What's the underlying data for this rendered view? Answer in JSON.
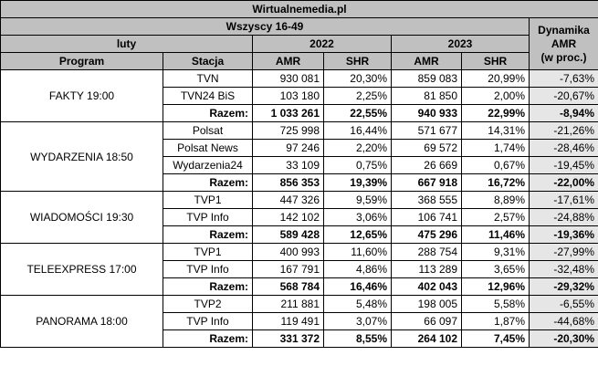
{
  "header": {
    "site": "Wirtualnemedia.pl",
    "group": "Wszyscy 16-49",
    "month": "luty",
    "year_a": "2022",
    "year_b": "2023",
    "dyn_line1": "Dynamika",
    "dyn_line2": "AMR",
    "dyn_line3": "(w proc.)",
    "col_program": "Program",
    "col_station": "Stacja",
    "col_amr": "AMR",
    "col_shr": "SHR"
  },
  "total_label": "Razem:",
  "programs": [
    {
      "name": "FAKTY 19:00",
      "rows": [
        {
          "station": "TVN",
          "amr22": "930 081",
          "shr22": "20,30%",
          "amr23": "859 083",
          "shr23": "20,99%",
          "dyn": "-7,63%"
        },
        {
          "station": "TVN24 BiS",
          "amr22": "103 180",
          "shr22": "2,25%",
          "amr23": "81 850",
          "shr23": "2,00%",
          "dyn": "-20,67%"
        }
      ],
      "total": {
        "amr22": "1 033 261",
        "shr22": "22,55%",
        "amr23": "940 933",
        "shr23": "22,99%",
        "dyn": "-8,94%"
      }
    },
    {
      "name": "WYDARZENIA 18:50",
      "rows": [
        {
          "station": "Polsat",
          "amr22": "725 998",
          "shr22": "16,44%",
          "amr23": "571 677",
          "shr23": "14,31%",
          "dyn": "-21,26%"
        },
        {
          "station": "Polsat News",
          "amr22": "97 246",
          "shr22": "2,20%",
          "amr23": "69 572",
          "shr23": "1,74%",
          "dyn": "-28,46%"
        },
        {
          "station": "Wydarzenia24",
          "amr22": "33 109",
          "shr22": "0,75%",
          "amr23": "26 669",
          "shr23": "0,67%",
          "dyn": "-19,45%"
        }
      ],
      "total": {
        "amr22": "856 353",
        "shr22": "19,39%",
        "amr23": "667 918",
        "shr23": "16,72%",
        "dyn": "-22,00%"
      }
    },
    {
      "name": "WIADOMOŚCI 19:30",
      "rows": [
        {
          "station": "TVP1",
          "amr22": "447 326",
          "shr22": "9,59%",
          "amr23": "368 555",
          "shr23": "8,89%",
          "dyn": "-17,61%"
        },
        {
          "station": "TVP Info",
          "amr22": "142 102",
          "shr22": "3,06%",
          "amr23": "106 741",
          "shr23": "2,57%",
          "dyn": "-24,88%"
        }
      ],
      "total": {
        "amr22": "589 428",
        "shr22": "12,65%",
        "amr23": "475 296",
        "shr23": "11,46%",
        "dyn": "-19,36%"
      }
    },
    {
      "name": "TELEEXPRESS 17:00",
      "rows": [
        {
          "station": "TVP1",
          "amr22": "400 993",
          "shr22": "11,60%",
          "amr23": "288 754",
          "shr23": "9,31%",
          "dyn": "-27,99%"
        },
        {
          "station": "TVP Info",
          "amr22": "167 791",
          "shr22": "4,86%",
          "amr23": "113 289",
          "shr23": "3,65%",
          "dyn": "-32,48%"
        }
      ],
      "total": {
        "amr22": "568 784",
        "shr22": "16,46%",
        "amr23": "402 043",
        "shr23": "12,96%",
        "dyn": "-29,32%"
      }
    },
    {
      "name": "PANORAMA 18:00",
      "rows": [
        {
          "station": "TVP2",
          "amr22": "211 881",
          "shr22": "5,48%",
          "amr23": "198 005",
          "shr23": "5,58%",
          "dyn": "-6,55%"
        },
        {
          "station": "TVP Info",
          "amr22": "119 491",
          "shr22": "3,07%",
          "amr23": "66 097",
          "shr23": "1,87%",
          "dyn": "-44,68%"
        }
      ],
      "total": {
        "amr22": "331 372",
        "shr22": "8,55%",
        "amr23": "264 102",
        "shr23": "7,45%",
        "dyn": "-20,30%"
      }
    }
  ]
}
